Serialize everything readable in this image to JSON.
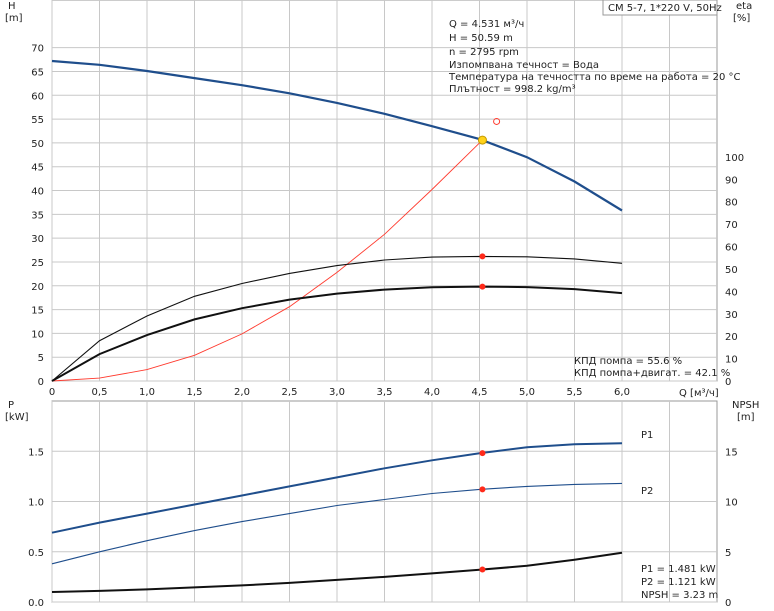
{
  "chart_data": [
    {
      "type": "line",
      "title": "CM 5-7, 1*220 V, 50Hz",
      "xlabel": "Q [м³/ч]",
      "ylabel_left": "H",
      "ylabel_left_unit": "[m]",
      "ylabel_right": "eta",
      "ylabel_right_unit": "[%]",
      "xlim": [
        0,
        7
      ],
      "ylim": [
        0,
        80
      ],
      "y2lim": [
        0,
        170
      ],
      "grid": true,
      "x_ticks": [
        "0",
        "0,5",
        "1,0",
        "1,5",
        "2,0",
        "2,5",
        "3,0",
        "3,5",
        "4,0",
        "4,5",
        "5,0",
        "5,5",
        "6,0"
      ],
      "y_ticks": [
        "0",
        "5",
        "10",
        "15",
        "20",
        "25",
        "30",
        "35",
        "40",
        "45",
        "50",
        "55",
        "60",
        "65",
        "70"
      ],
      "y2_ticks": [
        "0",
        "10",
        "20",
        "30",
        "40",
        "50",
        "60",
        "70",
        "80",
        "90",
        "100"
      ],
      "info_lines": [
        "Q = 4.531 м³/ч",
        "H = 50.59 m",
        "n = 2795 rpm",
        "Изпомпвана течност = Вода",
        "Температура на течността по време на работа = 20 °C",
        "Плътност = 998.2 kg/m³"
      ],
      "eff_labels": [
        "КПД помпа = 55.6 %",
        "КПД помпа+двигат. = 42.1 %"
      ],
      "series": [
        {
          "role": "head",
          "axis": "left",
          "color": "#1f4e8c",
          "x": [
            0,
            0.5,
            1.0,
            1.5,
            2.0,
            2.5,
            3.0,
            3.5,
            4.0,
            4.5,
            5.0,
            5.5,
            6.0
          ],
          "y": [
            67.2,
            66.4,
            65.1,
            63.6,
            62.1,
            60.4,
            58.4,
            56.1,
            53.5,
            50.8,
            47.0,
            41.9,
            35.8
          ]
        },
        {
          "role": "system",
          "axis": "left",
          "color": "#ff3b2f",
          "x": [
            0,
            0.5,
            1.0,
            1.5,
            2.0,
            2.5,
            3.0,
            3.5,
            4.0,
            4.5,
            4.531
          ],
          "y": [
            0,
            0.6,
            2.4,
            5.4,
            9.9,
            15.6,
            22.8,
            30.8,
            40.2,
            50.0,
            50.59
          ]
        },
        {
          "role": "eta-pump",
          "axis": "right",
          "color": "#111111",
          "x": [
            0,
            0.5,
            1.0,
            1.5,
            2.0,
            2.5,
            3.0,
            3.5,
            4.0,
            4.5,
            5.0,
            5.5,
            6.0
          ],
          "y": [
            0,
            18.0,
            29.0,
            37.8,
            43.5,
            48.0,
            51.5,
            54.0,
            55.3,
            55.6,
            55.4,
            54.5,
            52.5
          ]
        },
        {
          "role": "eta-pump-motor",
          "axis": "right",
          "color": "#111111",
          "x": [
            0,
            0.5,
            1.0,
            1.5,
            2.0,
            2.5,
            3.0,
            3.5,
            4.0,
            4.5,
            5.0,
            5.5,
            6.0
          ],
          "y": [
            0,
            12.0,
            20.5,
            27.5,
            32.5,
            36.3,
            39.0,
            40.8,
            41.8,
            42.1,
            41.9,
            41.0,
            39.2
          ]
        }
      ],
      "operating_point": {
        "x": 4.531,
        "y": 50.59
      },
      "eta_points": [
        55.6,
        42.1
      ],
      "open_marker": {
        "x": 4.68,
        "y": 54.5
      }
    },
    {
      "type": "line",
      "xlabel": "",
      "ylabel_left": "P",
      "ylabel_left_unit": "[kW]",
      "ylabel_right": "NPSH",
      "ylabel_right_unit": "[m]",
      "xlim": [
        0,
        7
      ],
      "ylim": [
        0,
        2.0
      ],
      "y2lim": [
        0,
        20
      ],
      "grid": true,
      "y_ticks": [
        "0.0",
        "0.5",
        "1.0",
        "1.5"
      ],
      "y2_ticks": [
        "0",
        "5",
        "10",
        "15"
      ],
      "value_labels": [
        "P1 = 1.481 kW",
        "P2 = 1.121 kW",
        "NPSH = 3.23 m"
      ],
      "series": [
        {
          "name": "P1",
          "axis": "left",
          "color": "#1f4e8c",
          "x": [
            0,
            0.5,
            1.0,
            1.5,
            2.0,
            2.5,
            3.0,
            3.5,
            4.0,
            4.5,
            5.0,
            5.5,
            6.0
          ],
          "y": [
            0.69,
            0.79,
            0.88,
            0.97,
            1.06,
            1.15,
            1.24,
            1.33,
            1.41,
            1.48,
            1.54,
            1.57,
            1.58
          ]
        },
        {
          "name": "P2",
          "axis": "left",
          "color": "#1f4e8c",
          "x": [
            0,
            0.5,
            1.0,
            1.5,
            2.0,
            2.5,
            3.0,
            3.5,
            4.0,
            4.5,
            5.0,
            5.5,
            6.0
          ],
          "y": [
            0.38,
            0.5,
            0.61,
            0.71,
            0.8,
            0.88,
            0.96,
            1.02,
            1.08,
            1.12,
            1.15,
            1.17,
            1.18
          ]
        },
        {
          "role": "npsh",
          "axis": "right",
          "color": "#111111",
          "x": [
            0,
            0.5,
            1.0,
            1.5,
            2.0,
            2.5,
            3.0,
            3.5,
            4.0,
            4.5,
            5.0,
            5.5,
            6.0
          ],
          "y": [
            1.0,
            1.1,
            1.25,
            1.45,
            1.65,
            1.9,
            2.2,
            2.5,
            2.85,
            3.2,
            3.6,
            4.2,
            4.9
          ]
        }
      ],
      "points": [
        1.481,
        1.121,
        3.23
      ]
    }
  ]
}
